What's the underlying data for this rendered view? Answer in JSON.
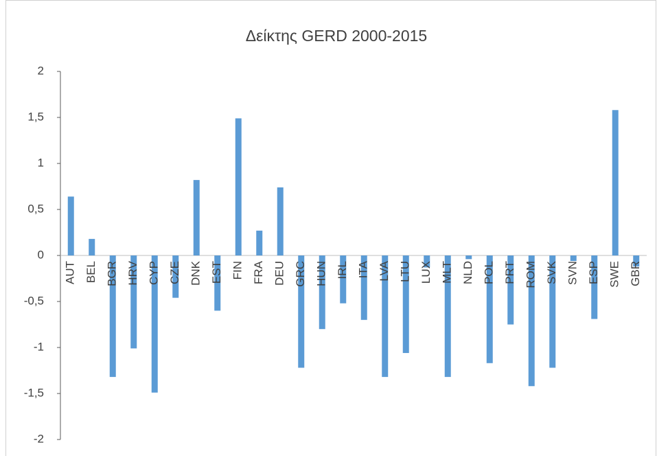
{
  "chart_data": {
    "type": "bar",
    "title": "Δείκτης GERD 2000-2015",
    "categories": [
      "AUT",
      "BEL",
      "BGR",
      "HRV",
      "CYP",
      "CZE",
      "DNK",
      "EST",
      "FIN",
      "FRA",
      "DEU",
      "GRC",
      "HUN",
      "IRL",
      "ITA",
      "LVA",
      "LTU",
      "LUX",
      "MLT",
      "NLD",
      "POL",
      "PRT",
      "ROM",
      "SVK",
      "SVN",
      "ESP",
      "SWE",
      "GBR"
    ],
    "values": [
      0.64,
      0.18,
      -1.32,
      -1.01,
      -1.49,
      -0.46,
      0.82,
      -0.6,
      1.49,
      0.27,
      0.74,
      -1.22,
      -0.8,
      -0.52,
      -0.7,
      -1.32,
      -1.06,
      -0.13,
      -1.32,
      -0.04,
      -1.17,
      -0.75,
      -1.42,
      -1.22,
      -0.06,
      -0.69,
      1.58,
      -0.12
    ],
    "color": "#5b9bd5",
    "ylim": [
      -2,
      2
    ],
    "yticks": [
      -2,
      {
        "value": -1.5,
        "label": "-1,5"
      },
      -1,
      {
        "value": -0.5,
        "label": "-0,5"
      },
      0,
      {
        "value": 0.5,
        "label": "0,5"
      },
      1,
      {
        "value": 1.5,
        "label": "1,5"
      },
      2
    ],
    "grid": false
  }
}
